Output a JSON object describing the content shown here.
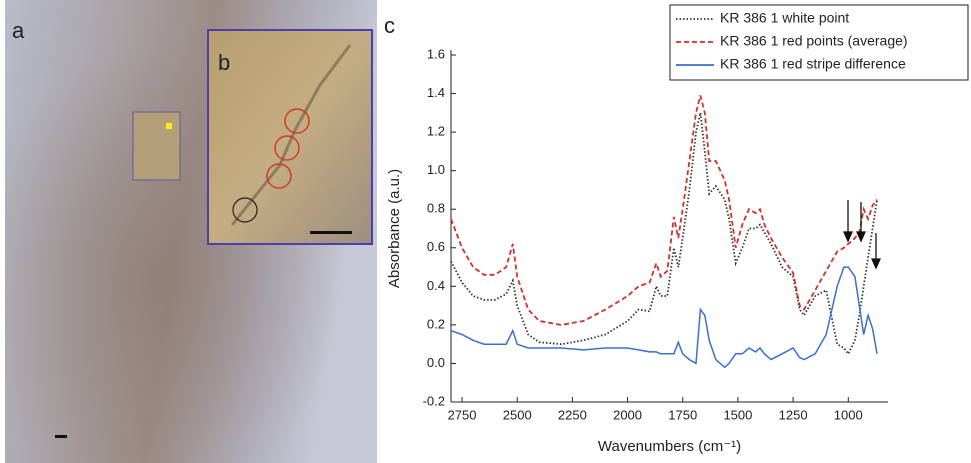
{
  "figure": {
    "panel_labels": [
      "a",
      "b",
      "c"
    ]
  },
  "chart_data": {
    "type": "line",
    "xlabel": "Wavenumbers (cm⁻¹)",
    "ylabel": "Absorbance (a.u.)",
    "xlim": [
      2800,
      820
    ],
    "ylim": [
      -0.2,
      1.6
    ],
    "xticks": [
      2750,
      2500,
      2250,
      2000,
      1750,
      1500,
      1250,
      1000
    ],
    "yticks": [
      -0.2,
      {
        "value": 0,
        "label": "0.0"
      },
      0.2,
      0.4,
      0.6,
      0.8,
      {
        "value": 1,
        "label": "1.0"
      },
      1.2,
      1.4,
      1.6
    ],
    "legend": "upper right",
    "x": [
      2800,
      2750,
      2700,
      2650,
      2600,
      2550,
      2520,
      2500,
      2450,
      2400,
      2300,
      2200,
      2100,
      2000,
      1950,
      1900,
      1870,
      1850,
      1820,
      1790,
      1770,
      1750,
      1720,
      1690,
      1670,
      1650,
      1630,
      1600,
      1560,
      1540,
      1510,
      1480,
      1450,
      1420,
      1400,
      1380,
      1350,
      1300,
      1250,
      1220,
      1200,
      1150,
      1100,
      1050,
      1020,
      1000,
      970,
      950,
      930,
      910,
      890,
      870
    ],
    "series": [
      {
        "name": "KR 386 1 white point",
        "color": "#333333",
        "linestyle": "dotted",
        "values": [
          0.53,
          0.42,
          0.35,
          0.33,
          0.33,
          0.36,
          0.43,
          0.3,
          0.15,
          0.11,
          0.1,
          0.12,
          0.15,
          0.22,
          0.28,
          0.27,
          0.4,
          0.35,
          0.35,
          0.6,
          0.5,
          0.65,
          0.9,
          1.2,
          1.3,
          1.1,
          0.88,
          0.92,
          0.85,
          0.75,
          0.52,
          0.6,
          0.7,
          0.7,
          0.72,
          0.68,
          0.62,
          0.5,
          0.45,
          0.28,
          0.25,
          0.35,
          0.38,
          0.1,
          0.08,
          0.05,
          0.12,
          0.25,
          0.4,
          0.55,
          0.7,
          0.85
        ]
      },
      {
        "name": "KR 386 1 red points (average)",
        "color": "#d0312d",
        "linestyle": "dashed",
        "values": [
          0.75,
          0.6,
          0.5,
          0.46,
          0.46,
          0.5,
          0.62,
          0.45,
          0.28,
          0.22,
          0.2,
          0.22,
          0.28,
          0.35,
          0.4,
          0.42,
          0.52,
          0.45,
          0.48,
          0.76,
          0.65,
          0.8,
          1.05,
          1.3,
          1.39,
          1.3,
          1.05,
          1.05,
          0.95,
          0.85,
          0.6,
          0.72,
          0.8,
          0.78,
          0.8,
          0.72,
          0.65,
          0.55,
          0.47,
          0.3,
          0.28,
          0.38,
          0.48,
          0.58,
          0.6,
          0.62,
          0.65,
          0.68,
          0.8,
          0.75,
          0.82,
          0.85
        ]
      },
      {
        "name": "KR 386 1 red stripe difference",
        "color": "#3a6fd0",
        "linestyle": "solid",
        "values": [
          0.17,
          0.15,
          0.12,
          0.1,
          0.1,
          0.1,
          0.17,
          0.1,
          0.08,
          0.08,
          0.08,
          0.07,
          0.08,
          0.08,
          0.07,
          0.06,
          0.06,
          0.05,
          0.05,
          0.05,
          0.11,
          0.05,
          0.02,
          0.0,
          0.28,
          0.25,
          0.12,
          0.02,
          -0.02,
          0.0,
          0.05,
          0.05,
          0.08,
          0.06,
          0.08,
          0.05,
          0.02,
          0.05,
          0.08,
          0.03,
          0.02,
          0.05,
          0.15,
          0.4,
          0.5,
          0.5,
          0.45,
          0.3,
          0.15,
          0.25,
          0.18,
          0.05
        ]
      }
    ]
  }
}
